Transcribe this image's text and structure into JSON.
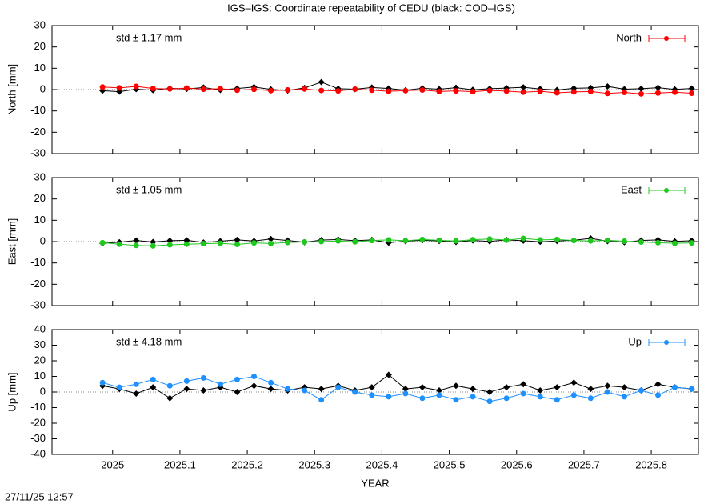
{
  "title": "IGS–IGS: Coordinate repeatability of CEDU (black: COD–IGS)",
  "timestamp": "27/11/25 12:57",
  "chart_data": [
    {
      "type": "line",
      "ylabel": "North [mm]",
      "annotation": "std ± 1.17 mm",
      "xlim": [
        2024.91,
        2025.87
      ],
      "xticks": [
        2025,
        2025.1,
        2025.2,
        2025.3,
        2025.4,
        2025.5,
        2025.6,
        2025.7,
        2025.8
      ],
      "ylim": [
        -30,
        30
      ],
      "yticks": [
        -30,
        -20,
        -10,
        0,
        10,
        20,
        30
      ],
      "x": [
        2024.985,
        2025.01,
        2025.035,
        2025.06,
        2025.085,
        2025.11,
        2025.135,
        2025.16,
        2025.185,
        2025.21,
        2025.235,
        2025.26,
        2025.285,
        2025.31,
        2025.335,
        2025.36,
        2025.385,
        2025.41,
        2025.435,
        2025.46,
        2025.485,
        2025.51,
        2025.535,
        2025.56,
        2025.585,
        2025.61,
        2025.635,
        2025.66,
        2025.685,
        2025.71,
        2025.735,
        2025.76,
        2025.785,
        2025.81,
        2025.835,
        2025.86
      ],
      "series": [
        {
          "color": "#000000",
          "values": [
            -0.5,
            -1.0,
            0.2,
            -0.3,
            0.6,
            0.3,
            1.0,
            -0.2,
            0.5,
            1.2,
            0.1,
            -0.4,
            0.8,
            3.5,
            0.4,
            0.2,
            1.0,
            0.5,
            -0.3,
            0.6,
            0.2,
            0.9,
            -0.1,
            0.4,
            0.7,
            1.1,
            0.3,
            -0.2,
            0.6,
            0.8,
            1.5,
            0.2,
            0.4,
            0.9,
            0.1,
            0.5
          ]
        },
        {
          "name": "North",
          "color": "#ff0000",
          "values": [
            1.2,
            0.8,
            1.5,
            0.5,
            0.3,
            0.7,
            0.2,
            0.4,
            -0.3,
            0.1,
            -0.5,
            -0.2,
            0.3,
            -0.4,
            -0.6,
            0.2,
            -0.3,
            -0.8,
            -0.5,
            -0.2,
            -0.9,
            -0.6,
            -1.0,
            -0.4,
            -0.7,
            -1.2,
            -0.8,
            -1.5,
            -1.1,
            -0.9,
            -1.8,
            -1.3,
            -2.0,
            -1.6,
            -1.2,
            -1.7
          ]
        }
      ]
    },
    {
      "type": "line",
      "ylabel": "East [mm]",
      "annotation": "std ± 1.05 mm",
      "xlim": [
        2024.91,
        2025.87
      ],
      "xticks": [
        2025,
        2025.1,
        2025.2,
        2025.3,
        2025.4,
        2025.5,
        2025.6,
        2025.7,
        2025.8
      ],
      "ylim": [
        -30,
        30
      ],
      "yticks": [
        -30,
        -20,
        -10,
        0,
        10,
        20,
        30
      ],
      "x": [
        2024.985,
        2025.01,
        2025.035,
        2025.06,
        2025.085,
        2025.11,
        2025.135,
        2025.16,
        2025.185,
        2025.21,
        2025.235,
        2025.26,
        2025.285,
        2025.31,
        2025.335,
        2025.36,
        2025.385,
        2025.41,
        2025.435,
        2025.46,
        2025.485,
        2025.51,
        2025.535,
        2025.56,
        2025.585,
        2025.61,
        2025.635,
        2025.66,
        2025.685,
        2025.71,
        2025.735,
        2025.76,
        2025.785,
        2025.81,
        2025.835,
        2025.86
      ],
      "series": [
        {
          "color": "#000000",
          "values": [
            -0.8,
            -0.3,
            0.5,
            -0.2,
            0.4,
            0.6,
            -0.4,
            0.2,
            0.8,
            0.3,
            1.2,
            0.5,
            -0.3,
            0.7,
            1.0,
            0.4,
            0.8,
            -0.5,
            0.2,
            0.6,
            0.3,
            -0.2,
            0.5,
            0.1,
            0.8,
            0.4,
            -0.1,
            0.3,
            0.6,
            1.5,
            0.2,
            -0.3,
            0.5,
            0.8,
            0.1,
            0.4
          ]
        },
        {
          "name": "East",
          "color": "#1ec81e",
          "values": [
            -0.5,
            -1.2,
            -1.8,
            -2.0,
            -1.5,
            -1.2,
            -1.0,
            -0.8,
            -1.3,
            -0.6,
            -0.9,
            -0.4,
            -0.2,
            0.0,
            0.3,
            -0.1,
            0.5,
            0.8,
            0.4,
            1.0,
            0.6,
            0.3,
            0.9,
            1.2,
            0.7,
            1.5,
            0.8,
            1.0,
            0.5,
            0.3,
            0.6,
            0.2,
            -0.2,
            -0.5,
            -0.8,
            -0.6
          ]
        }
      ]
    },
    {
      "type": "line",
      "ylabel": "Up [mm]",
      "xlabel": "YEAR",
      "annotation": "std ± 4.18 mm",
      "xlim": [
        2024.91,
        2025.87
      ],
      "xticks": [
        2025,
        2025.1,
        2025.2,
        2025.3,
        2025.4,
        2025.5,
        2025.6,
        2025.7,
        2025.8
      ],
      "ylim": [
        -40,
        40
      ],
      "yticks": [
        -40,
        -30,
        -20,
        -10,
        0,
        10,
        20,
        30,
        40
      ],
      "x": [
        2024.985,
        2025.01,
        2025.035,
        2025.06,
        2025.085,
        2025.11,
        2025.135,
        2025.16,
        2025.185,
        2025.21,
        2025.235,
        2025.26,
        2025.285,
        2025.31,
        2025.335,
        2025.36,
        2025.385,
        2025.41,
        2025.435,
        2025.46,
        2025.485,
        2025.51,
        2025.535,
        2025.56,
        2025.585,
        2025.61,
        2025.635,
        2025.66,
        2025.685,
        2025.71,
        2025.735,
        2025.76,
        2025.785,
        2025.81,
        2025.835,
        2025.86
      ],
      "series": [
        {
          "color": "#000000",
          "values": [
            4,
            2,
            -1,
            3,
            -4,
            2,
            1,
            3,
            0,
            4,
            2,
            1,
            3,
            2,
            4,
            1,
            3,
            11,
            2,
            3,
            1,
            4,
            2,
            0,
            3,
            5,
            1,
            3,
            6,
            2,
            4,
            3,
            1,
            5,
            3,
            2
          ]
        },
        {
          "name": "Up",
          "color": "#1e90ff",
          "values": [
            6,
            3,
            5,
            8,
            4,
            7,
            9,
            5,
            8,
            10,
            6,
            2,
            1,
            -5,
            3,
            0,
            -2,
            -3,
            -1,
            -4,
            -2,
            -5,
            -3,
            -6,
            -4,
            -1,
            -3,
            -5,
            -2,
            -4,
            0,
            -3,
            1,
            -2,
            3,
            2
          ]
        }
      ]
    }
  ]
}
